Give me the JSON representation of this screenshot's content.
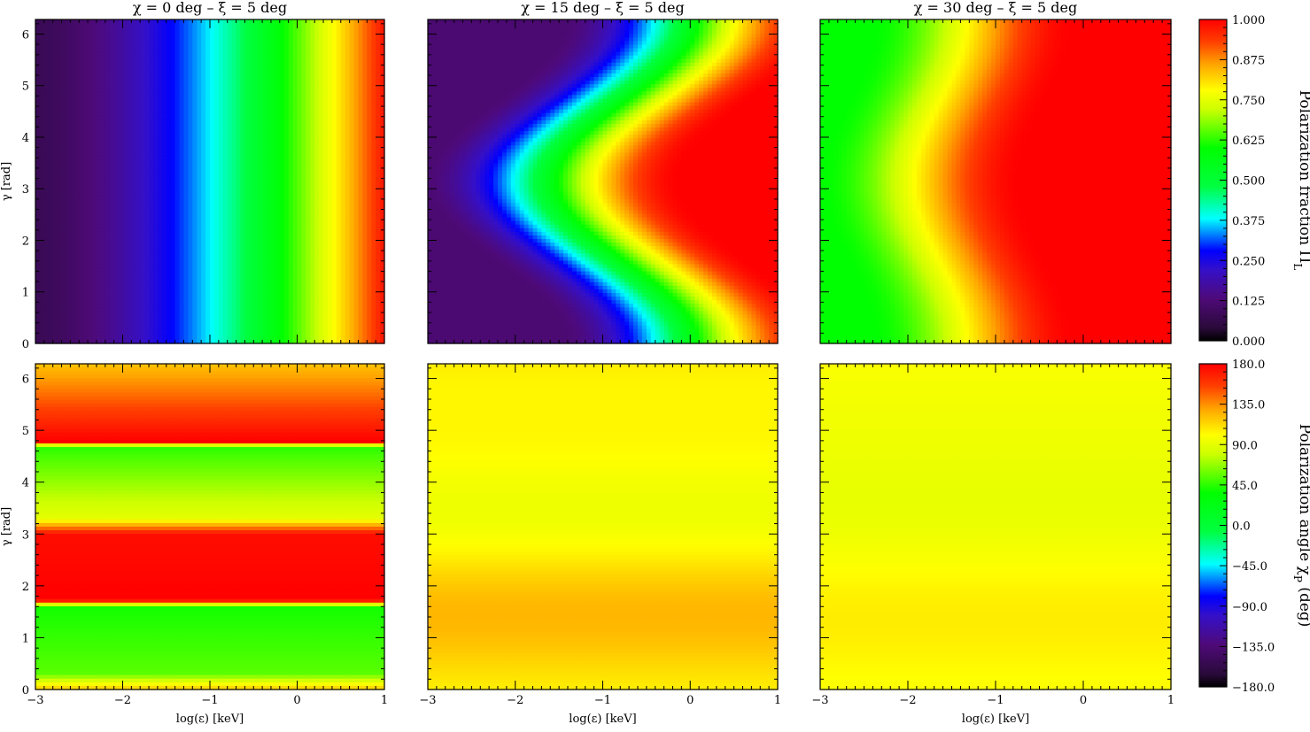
{
  "figure": {
    "panel_titles": [
      "χ = 0 deg – ξ = 5 deg",
      "χ = 15 deg – ξ = 5 deg",
      "χ = 30 deg – ξ = 5 deg"
    ],
    "xlabel": "log(ε) [keV]",
    "ylabel": "γ [rad]"
  },
  "chart_data": [
    {
      "type": "heatmap",
      "row": 1,
      "quantity": "Polarization fraction Π_L",
      "x_range": [
        -3,
        1
      ],
      "y_range": [
        0,
        6.2832
      ],
      "x_ticks": [
        "−3",
        "−2",
        "−1",
        "0",
        "1"
      ],
      "y_ticks": [
        "0",
        "1",
        "2",
        "3",
        "4",
        "5",
        "6"
      ],
      "colorbar": {
        "label": "Polarization fraction Π",
        "label_subscript": "L",
        "range": [
          0,
          1
        ],
        "ticks": [
          "0.000",
          "0.125",
          "0.250",
          "0.375",
          "0.500",
          "0.625",
          "0.750",
          "0.875",
          "1.000"
        ],
        "colormap": "rainbow"
      },
      "panels": [
        {
          "title_index": 0,
          "chi_deg": 0,
          "xi_deg": 5,
          "description": "uniform in γ; Π rises from ~0.08 at log ε=−3 to ~0.97 at log ε=1"
        },
        {
          "title_index": 1,
          "chi_deg": 15,
          "xi_deg": 5,
          "description": "Π oscillates with γ, minimum near γ=0 and 2π, maximum near γ=π"
        },
        {
          "title_index": 2,
          "chi_deg": 30,
          "xi_deg": 5,
          "description": "Π ~0.6–1.0, nearly saturated above log ε≈−2"
        }
      ]
    },
    {
      "type": "heatmap",
      "row": 2,
      "quantity": "Polarization angle χ_P (deg)",
      "x_range": [
        -3,
        1
      ],
      "y_range": [
        0,
        6.2832
      ],
      "x_ticks": [
        "−3",
        "−2",
        "−1",
        "0",
        "1"
      ],
      "y_ticks": [
        "0",
        "1",
        "2",
        "3",
        "4",
        "5",
        "6"
      ],
      "colorbar": {
        "label": "Polarization angle χ",
        "label_subscript": "P",
        "label_suffix": " (deg)",
        "range": [
          -180,
          180
        ],
        "ticks": [
          "−180.0",
          "−135.0",
          "−90.0",
          "−45.0",
          "0.0",
          "45.0",
          "90.0",
          "135.0",
          "180.0"
        ],
        "colormap": "rainbow"
      },
      "panels": [
        {
          "title_index": 0,
          "chi_deg": 0,
          "xi_deg": 5,
          "description": "independent of energy; angle near 45° for γ below 1.6 and between 3.3–4.7, near 180° for γ between 1.7–3 and above 4.75"
        },
        {
          "title_index": 1,
          "chi_deg": 15,
          "xi_deg": 5,
          "description": "angle ~100–120° with weak γ modulation"
        },
        {
          "title_index": 2,
          "chi_deg": 30,
          "xi_deg": 5,
          "description": "angle ~90–105° with weak γ modulation"
        }
      ]
    }
  ]
}
